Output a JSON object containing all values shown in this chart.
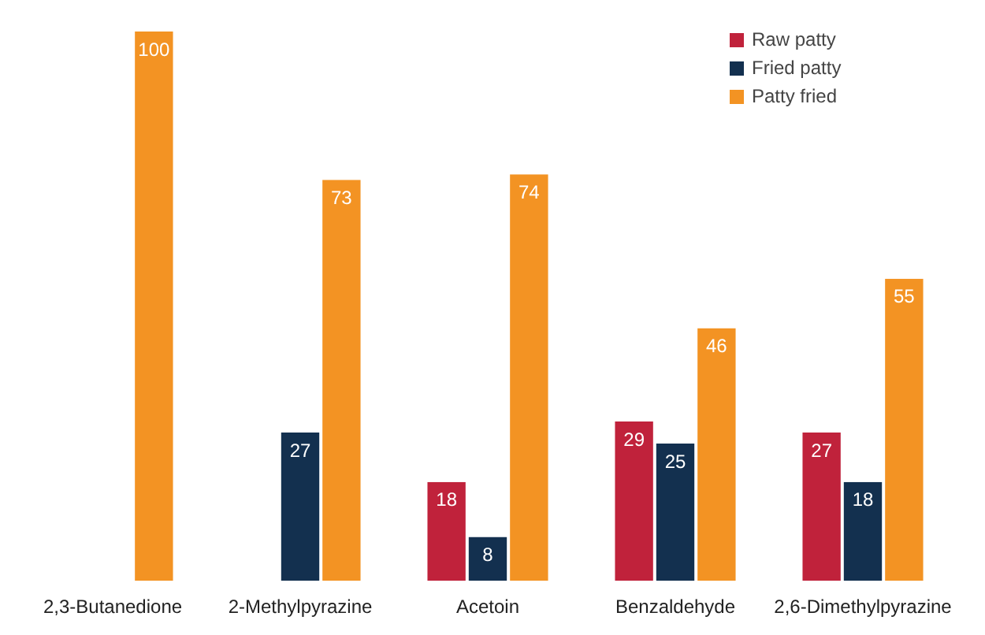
{
  "chart_data": {
    "type": "bar",
    "categories": [
      "2,3-Butanedione",
      "2-Methylpyrazine",
      "Acetoin",
      "Benzaldehyde",
      "2,6-Dimethylpyrazine"
    ],
    "series": [
      {
        "name": "Raw patty",
        "color": "#c0223b",
        "values": [
          null,
          null,
          18,
          29,
          27
        ]
      },
      {
        "name": "Fried patty",
        "color": "#13304f",
        "values": [
          null,
          27,
          8,
          25,
          18
        ]
      },
      {
        "name": "Patty fried",
        "color": "#f39323",
        "values": [
          100,
          73,
          74,
          46,
          55
        ]
      }
    ],
    "data_labels": true,
    "legend": "top right",
    "grid": false
  }
}
